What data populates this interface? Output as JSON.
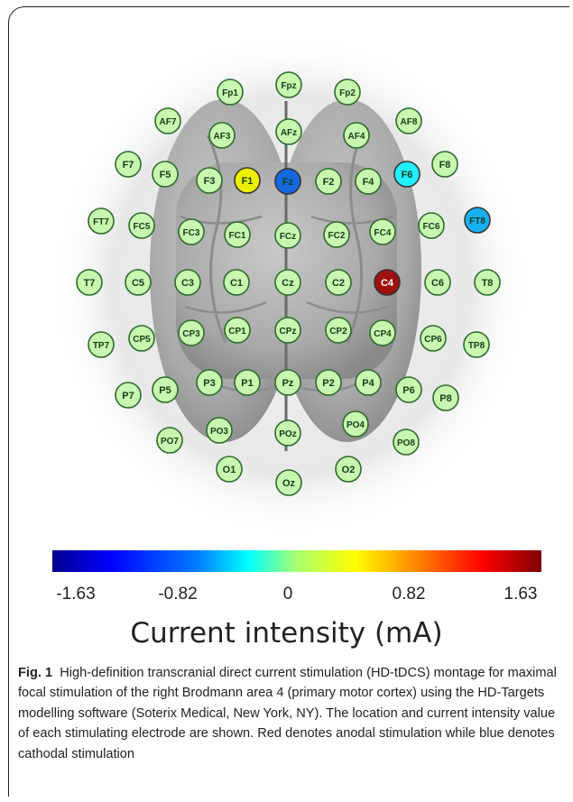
{
  "montage": {
    "electrodes": [
      {
        "id": "Fp1",
        "color": "normal"
      },
      {
        "id": "Fpz",
        "color": "normal"
      },
      {
        "id": "Fp2",
        "color": "normal"
      },
      {
        "id": "AF7",
        "color": "normal"
      },
      {
        "id": "AF3",
        "color": "normal"
      },
      {
        "id": "AFz",
        "color": "normal"
      },
      {
        "id": "AF4",
        "color": "normal"
      },
      {
        "id": "AF8",
        "color": "normal"
      },
      {
        "id": "F7",
        "color": "normal"
      },
      {
        "id": "F5",
        "color": "normal"
      },
      {
        "id": "F3",
        "color": "normal"
      },
      {
        "id": "F1",
        "color": "#eaf000"
      },
      {
        "id": "Fz",
        "color": "#1468e0"
      },
      {
        "id": "F2",
        "color": "normal"
      },
      {
        "id": "F4",
        "color": "normal"
      },
      {
        "id": "F6",
        "color": "#20f0ff"
      },
      {
        "id": "F8",
        "color": "normal"
      },
      {
        "id": "FT7",
        "color": "normal"
      },
      {
        "id": "FC5",
        "color": "normal"
      },
      {
        "id": "FC3",
        "color": "normal"
      },
      {
        "id": "FC1",
        "color": "normal"
      },
      {
        "id": "FCz",
        "color": "normal"
      },
      {
        "id": "FC2",
        "color": "normal"
      },
      {
        "id": "FC4",
        "color": "normal"
      },
      {
        "id": "FC6",
        "color": "normal"
      },
      {
        "id": "FT8",
        "color": "#18b0f0"
      },
      {
        "id": "T7",
        "color": "normal"
      },
      {
        "id": "C5",
        "color": "normal"
      },
      {
        "id": "C3",
        "color": "normal"
      },
      {
        "id": "C1",
        "color": "normal"
      },
      {
        "id": "Cz",
        "color": "normal"
      },
      {
        "id": "C2",
        "color": "normal"
      },
      {
        "id": "C4",
        "color": "#a01010"
      },
      {
        "id": "C6",
        "color": "normal"
      },
      {
        "id": "T8",
        "color": "normal"
      },
      {
        "id": "TP7",
        "color": "normal"
      },
      {
        "id": "CP5",
        "color": "normal"
      },
      {
        "id": "CP3",
        "color": "normal"
      },
      {
        "id": "CP1",
        "color": "normal"
      },
      {
        "id": "CPz",
        "color": "normal"
      },
      {
        "id": "CP2",
        "color": "normal"
      },
      {
        "id": "CP4",
        "color": "normal"
      },
      {
        "id": "CP6",
        "color": "normal"
      },
      {
        "id": "TP8",
        "color": "normal"
      },
      {
        "id": "P7",
        "color": "normal"
      },
      {
        "id": "P5",
        "color": "normal"
      },
      {
        "id": "P3",
        "color": "normal"
      },
      {
        "id": "P1",
        "color": "normal"
      },
      {
        "id": "Pz",
        "color": "normal"
      },
      {
        "id": "P2",
        "color": "normal"
      },
      {
        "id": "P4",
        "color": "normal"
      },
      {
        "id": "P6",
        "color": "normal"
      },
      {
        "id": "P8",
        "color": "normal"
      },
      {
        "id": "PO7",
        "color": "normal"
      },
      {
        "id": "PO3",
        "color": "normal"
      },
      {
        "id": "POz",
        "color": "normal"
      },
      {
        "id": "PO4",
        "color": "normal"
      },
      {
        "id": "PO8",
        "color": "normal"
      },
      {
        "id": "O1",
        "color": "normal"
      },
      {
        "id": "Oz",
        "color": "normal"
      },
      {
        "id": "O2",
        "color": "normal"
      }
    ],
    "normal_fill": "#c8f7b0",
    "normal_stroke": "#2d6a2d"
  },
  "colorbar": {
    "ticks": [
      "-1.63",
      "-0.82",
      "0",
      "0.82",
      "1.63"
    ],
    "label": "Current intensity (mA)"
  },
  "caption": {
    "label": "Fig. 1",
    "text": "High-definition transcranial direct current stimulation (HD-tDCS) montage for maximal focal stimulation of the right Brodmann area 4 (primary motor cortex) using the HD-Targets modelling software (Soterix Medical, New York, NY). The location and current intensity value of each stimulating electrode are shown. Red denotes anodal stimulation while blue denotes cathodal stimulation"
  }
}
